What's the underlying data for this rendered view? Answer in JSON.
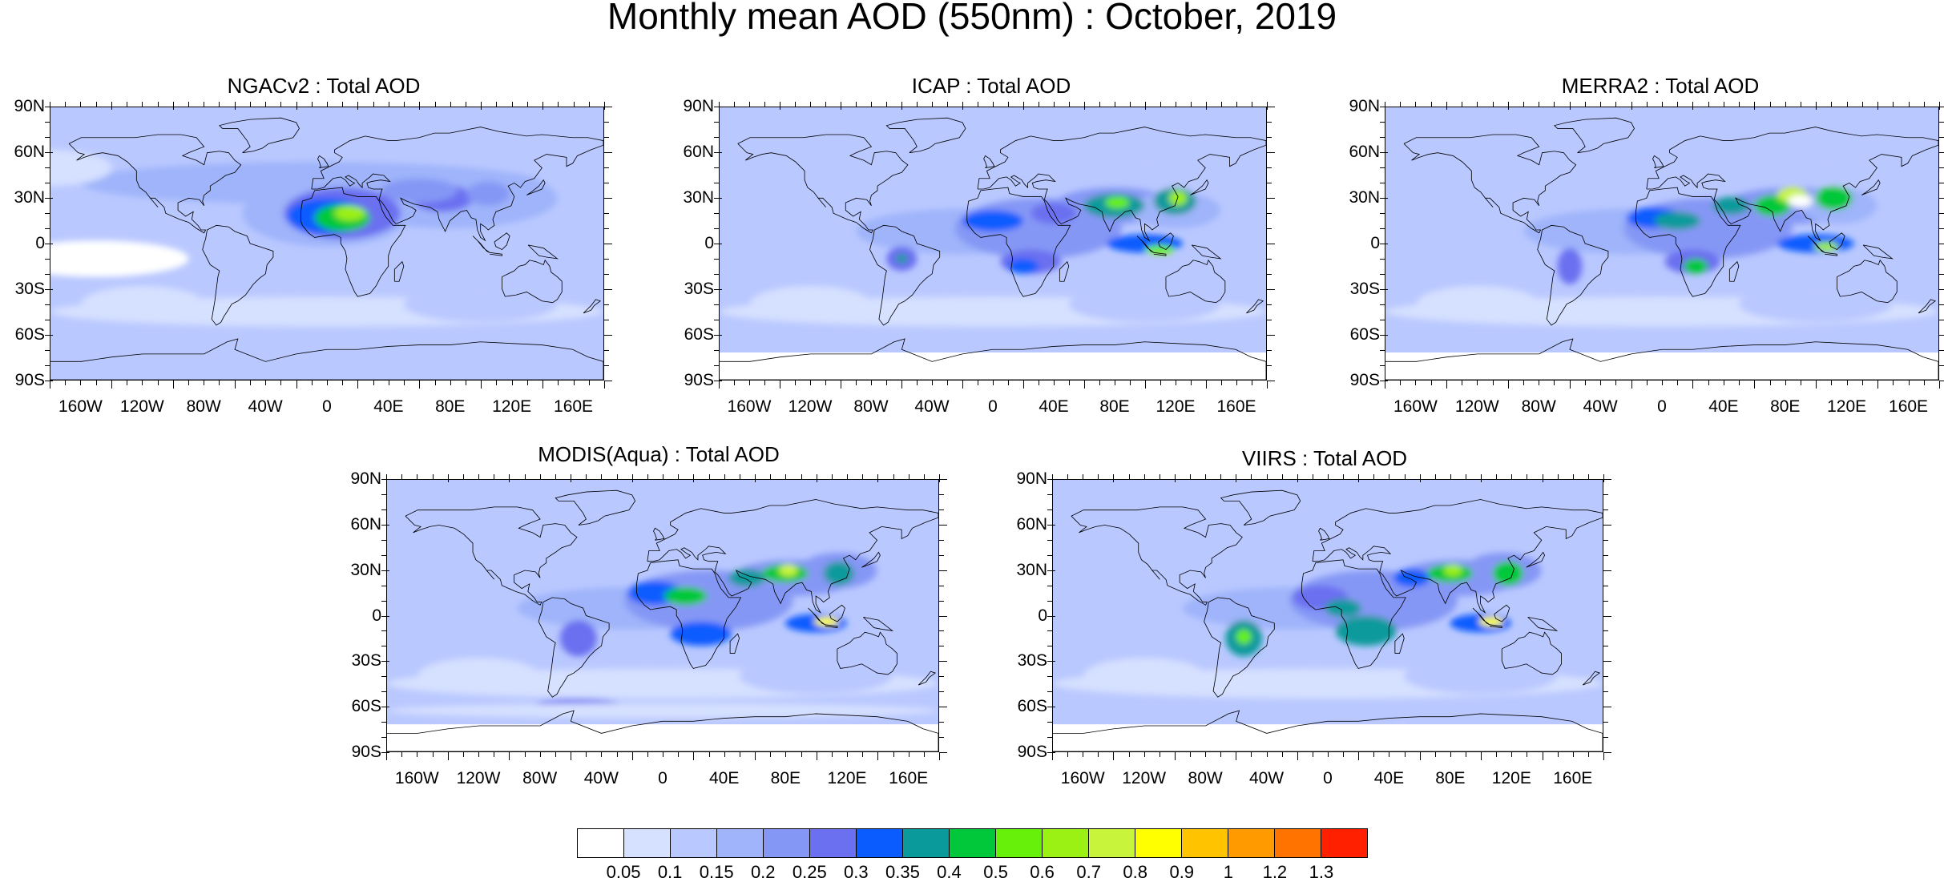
{
  "title": "Monthly mean AOD (550nm) : October, 2019",
  "panels": [
    {
      "title": "NGACv2 : Total AOD",
      "model": "ngac"
    },
    {
      "title": "ICAP : Total AOD",
      "model": "icap"
    },
    {
      "title": "MERRA2 : Total AOD",
      "model": "merra"
    },
    {
      "title": "MODIS(Aqua) : Total AOD",
      "model": "modis"
    },
    {
      "title": "VIIRS : Total AOD",
      "model": "viirs"
    }
  ],
  "lat_labels": [
    "90N",
    "60N",
    "30N",
    "0",
    "30S",
    "60S",
    "90S"
  ],
  "lon_labels": [
    "160W",
    "120W",
    "80W",
    "40W",
    "0",
    "40E",
    "80E",
    "120E",
    "160E"
  ],
  "colorbar": {
    "levels": [
      "0.05",
      "0.1",
      "0.15",
      "0.2",
      "0.25",
      "0.3",
      "0.35",
      "0.4",
      "0.5",
      "0.6",
      "0.7",
      "0.8",
      "0.9",
      "1",
      "1.2",
      "1.3"
    ],
    "colors": [
      "#ffffff",
      "#d6e0ff",
      "#b9c8ff",
      "#9fb4fa",
      "#8597f5",
      "#6a70f0",
      "#0a5cff",
      "#0a9a9c",
      "#00c83a",
      "#66f00a",
      "#9bf014",
      "#c8f53c",
      "#ffff00",
      "#ffc300",
      "#ff9b00",
      "#ff7300",
      "#ff2000"
    ]
  }
}
